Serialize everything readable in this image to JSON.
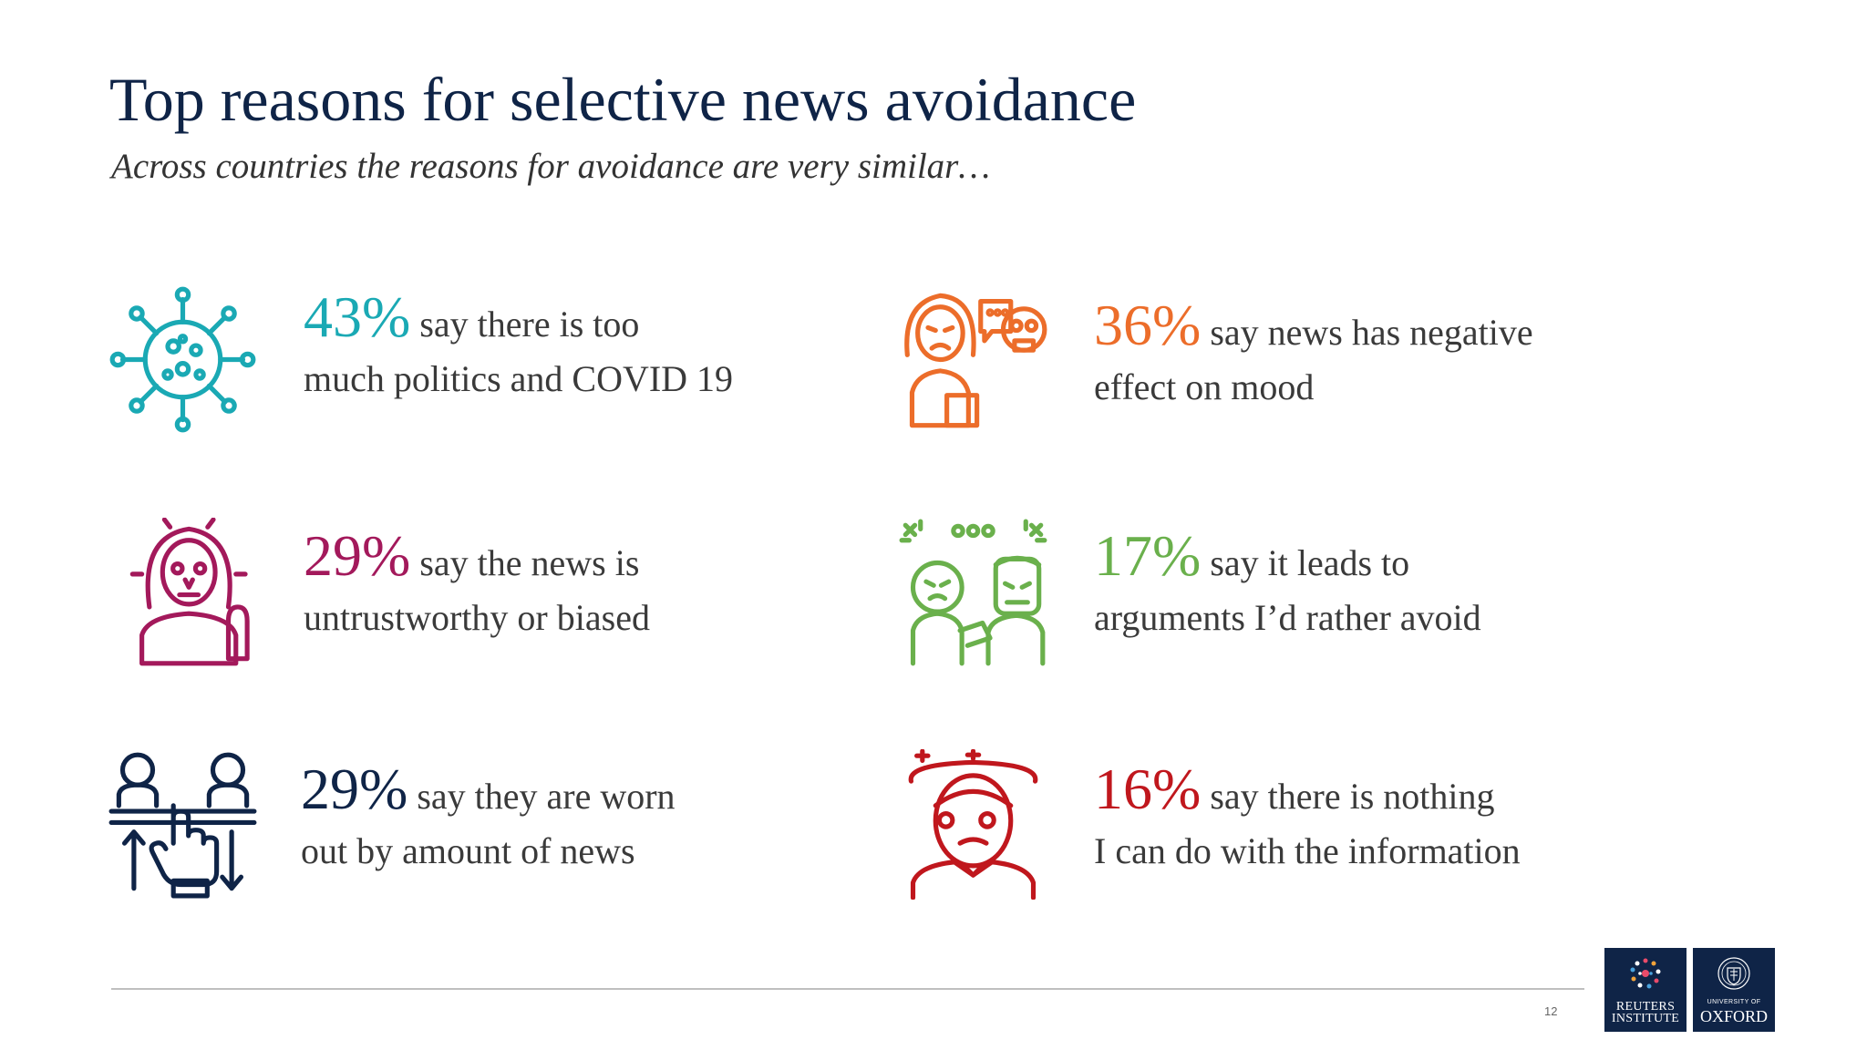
{
  "title": "Top reasons for selective news avoidance",
  "subtitle": "Across countries the reasons for avoidance are very similar…",
  "stats": [
    {
      "percent": "43%",
      "line1": "say there is too",
      "line2": "much politics and COVID 19",
      "color": "#1aa9b4",
      "icon": "virus-icon"
    },
    {
      "percent": "36%",
      "line1": "say news has negative",
      "line2": "effect on mood",
      "color": "#ec6d2a",
      "icon": "upset-person-icon"
    },
    {
      "percent": "29%",
      "line1": "say the news is",
      "line2": "untrustworthy or biased",
      "color": "#a3195b",
      "icon": "distrustful-person-icon"
    },
    {
      "percent": "17%",
      "line1": "say it leads to",
      "line2": "arguments I’d rather avoid",
      "color": "#6ab04c",
      "icon": "argument-icon"
    },
    {
      "percent": "29%",
      "line1": "say they are worn",
      "line2": "out by amount of news",
      "color": "#0f2447",
      "icon": "information-overload-icon"
    },
    {
      "percent": "16%",
      "line1": "say there is nothing",
      "line2": "I can do with the information",
      "color": "#c0171d",
      "icon": "dizzy-person-icon"
    }
  ],
  "footer": {
    "page_number": "12",
    "reuters_logo": [
      "REUTERS",
      "INSTITUTE"
    ],
    "oxford_logo": {
      "small": "UNIVERSITY OF",
      "big": "OXFORD"
    }
  }
}
